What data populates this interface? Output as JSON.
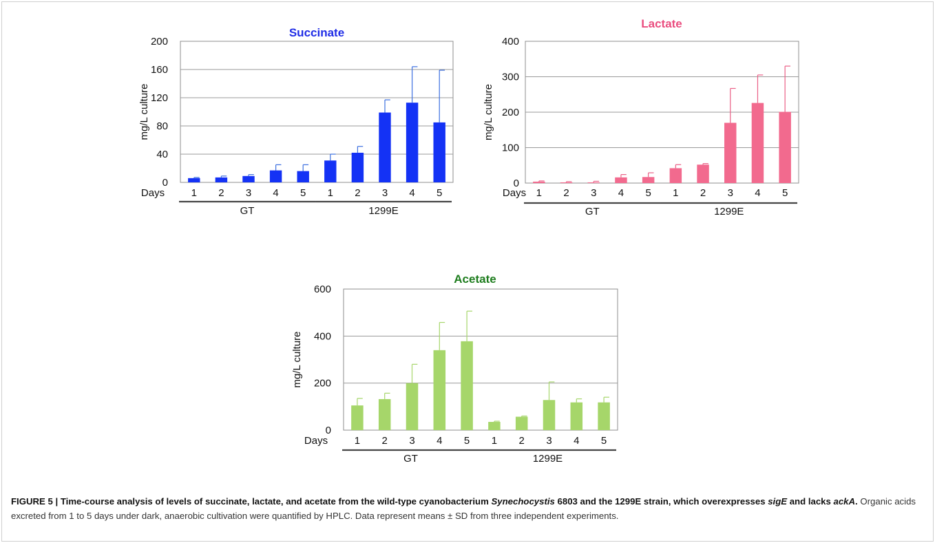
{
  "chart_data": [
    {
      "type": "bar",
      "title": "Succinate",
      "title_color": "#1f2ce6",
      "bar_color": "#1432f5",
      "error_color": "#3b6fe0",
      "ylabel": "mg/L culture",
      "xlabel_prefix": "Days",
      "ylim": [
        0,
        200
      ],
      "yticks": [
        0,
        40,
        80,
        120,
        160,
        200
      ],
      "categories": [
        "1",
        "2",
        "3",
        "4",
        "5",
        "1",
        "2",
        "3",
        "4",
        "5"
      ],
      "groups": [
        {
          "label": "GT",
          "start": 0,
          "end": 4
        },
        {
          "label": "1299E",
          "start": 5,
          "end": 9
        }
      ],
      "values": [
        6,
        7,
        9,
        17,
        16,
        31,
        42,
        99,
        113,
        85
      ],
      "errors": [
        1,
        2,
        2,
        8,
        9,
        9,
        9,
        18,
        51,
        74
      ],
      "grid": true
    },
    {
      "type": "bar",
      "title": "Lactate",
      "title_color": "#ea4d7f",
      "bar_color": "#f26a8e",
      "error_color": "#ea5f86",
      "ylabel": "mg/L culture",
      "xlabel_prefix": "Days",
      "ylim": [
        0,
        400
      ],
      "yticks": [
        0,
        100,
        200,
        300,
        400
      ],
      "categories": [
        "1",
        "2",
        "3",
        "4",
        "5",
        "1",
        "2",
        "3",
        "4",
        "5"
      ],
      "groups": [
        {
          "label": "GT",
          "start": 0,
          "end": 4
        },
        {
          "label": "1299E",
          "start": 5,
          "end": 9
        }
      ],
      "values": [
        4,
        2,
        2,
        16,
        17,
        42,
        52,
        170,
        226,
        201
      ],
      "errors": [
        2,
        2,
        3,
        8,
        12,
        10,
        3,
        97,
        79,
        129
      ],
      "grid": true
    },
    {
      "type": "bar",
      "title": "Acetate",
      "title_color": "#1e7d1e",
      "bar_color": "#a6d66a",
      "error_color": "#a6d66a",
      "ylabel": "mg/L culture",
      "xlabel_prefix": "Days",
      "ylim": [
        0,
        600
      ],
      "yticks": [
        0,
        200,
        400,
        600
      ],
      "categories": [
        "1",
        "2",
        "3",
        "4",
        "5",
        "1",
        "2",
        "3",
        "4",
        "5"
      ],
      "groups": [
        {
          "label": "GT",
          "start": 0,
          "end": 4
        },
        {
          "label": "1299E",
          "start": 5,
          "end": 9
        }
      ],
      "values": [
        105,
        132,
        200,
        340,
        378,
        35,
        57,
        128,
        118,
        118
      ],
      "errors": [
        30,
        25,
        80,
        118,
        128,
        3,
        3,
        77,
        15,
        22
      ],
      "grid": true
    }
  ],
  "caption": {
    "figure_label": "FIGURE 5 | ",
    "bold_part1": "Time-course analysis of levels of succinate, lactate, and acetate from the wild-type cyanobacterium ",
    "bold_italic1": "Synechocystis",
    "bold_part2": " 6803 and the 1299E strain, which overexpresses ",
    "bold_italic2": "sigE",
    "bold_part3": " and lacks ",
    "bold_italic3": "ackA",
    "bold_part4": ".",
    "body": " Organic acids excreted from 1 to 5 days under dark, anaerobic cultivation were quantified by HPLC. Data represent means ± SD from three independent experiments."
  }
}
